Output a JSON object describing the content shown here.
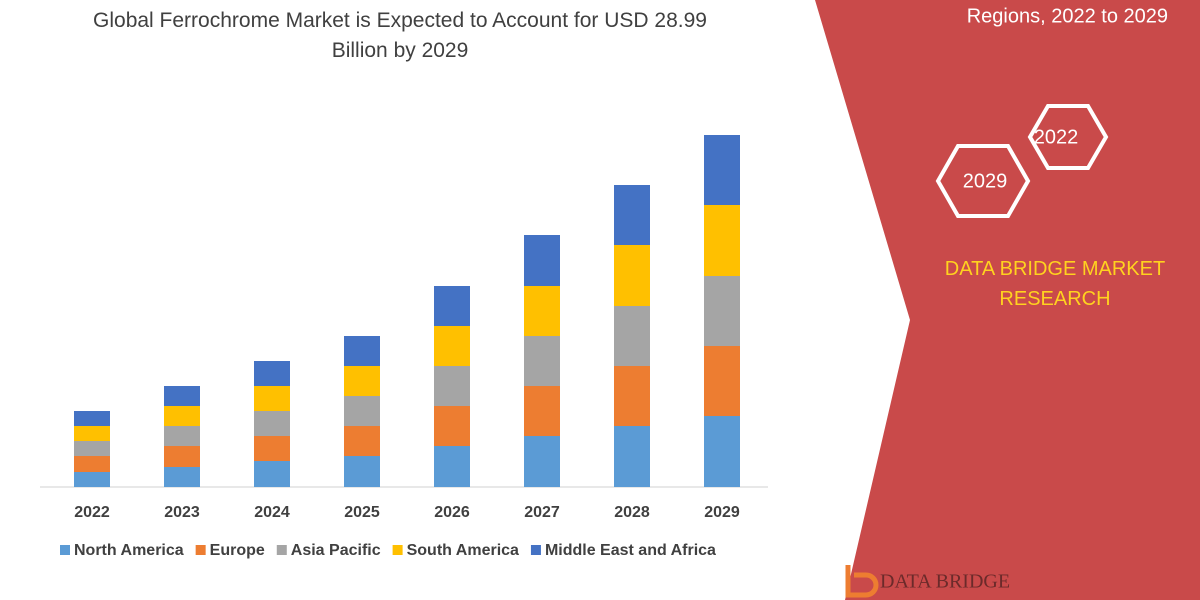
{
  "chart_data": {
    "type": "bar",
    "stacked": true,
    "title": "Global Ferrochrome Market is Expected to Account for USD 28.99 Billion by 2029",
    "categories": [
      "2022",
      "2023",
      "2024",
      "2025",
      "2026",
      "2027",
      "2028",
      "2029"
    ],
    "series": [
      {
        "name": "North America",
        "color": "#5b9bd5",
        "values": [
          15,
          20,
          26,
          31,
          41,
          51,
          61,
          71
        ]
      },
      {
        "name": "Europe",
        "color": "#ed7d31",
        "values": [
          16,
          21,
          25,
          30,
          40,
          50,
          60,
          70
        ]
      },
      {
        "name": "Asia Pacific",
        "color": "#a5a5a5",
        "values": [
          15,
          20,
          25,
          30,
          40,
          50,
          60,
          70
        ]
      },
      {
        "name": "South America",
        "color": "#ffc000",
        "values": [
          15,
          20,
          25,
          30,
          40,
          50,
          61,
          71
        ]
      },
      {
        "name": "Middle East and Africa",
        "color": "#4472c4",
        "values": [
          15,
          20,
          25,
          30,
          40,
          51,
          60,
          70
        ]
      }
    ],
    "ylim": [
      0,
      360
    ],
    "legend": "bottom"
  },
  "panel": {
    "subtitle": "Regions, 2022 to 2029",
    "hexagons": [
      "2022",
      "2029"
    ],
    "brand": "DATA BRIDGE MARKET RESEARCH",
    "logo": "DATA BRIDGE"
  }
}
